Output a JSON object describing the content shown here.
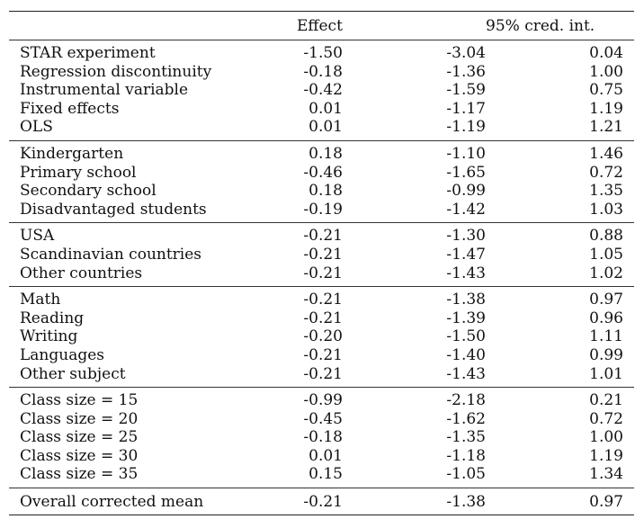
{
  "header": {
    "effect": "Effect",
    "ci": "95% cred. int."
  },
  "groups": [
    {
      "rows": [
        {
          "label": "STAR experiment",
          "effect": "-1.50",
          "lo": "-3.04",
          "hi": "0.04"
        },
        {
          "label": "Regression discontinuity",
          "effect": "-0.18",
          "lo": "-1.36",
          "hi": "1.00"
        },
        {
          "label": "Instrumental variable",
          "effect": "-0.42",
          "lo": "-1.59",
          "hi": "0.75"
        },
        {
          "label": "Fixed effects",
          "effect": "0.01",
          "lo": "-1.17",
          "hi": "1.19"
        },
        {
          "label": "OLS",
          "effect": "0.01",
          "lo": "-1.19",
          "hi": "1.21"
        }
      ]
    },
    {
      "rows": [
        {
          "label": "Kindergarten",
          "effect": "0.18",
          "lo": "-1.10",
          "hi": "1.46"
        },
        {
          "label": "Primary school",
          "effect": "-0.46",
          "lo": "-1.65",
          "hi": "0.72"
        },
        {
          "label": "Secondary school",
          "effect": "0.18",
          "lo": "-0.99",
          "hi": "1.35"
        },
        {
          "label": "Disadvantaged students",
          "effect": "-0.19",
          "lo": "-1.42",
          "hi": "1.03"
        }
      ]
    },
    {
      "rows": [
        {
          "label": "USA",
          "effect": "-0.21",
          "lo": "-1.30",
          "hi": "0.88"
        },
        {
          "label": "Scandinavian countries",
          "effect": "-0.21",
          "lo": "-1.47",
          "hi": "1.05"
        },
        {
          "label": "Other countries",
          "effect": "-0.21",
          "lo": "-1.43",
          "hi": "1.02"
        }
      ]
    },
    {
      "rows": [
        {
          "label": "Math",
          "effect": "-0.21",
          "lo": "-1.38",
          "hi": "0.97"
        },
        {
          "label": "Reading",
          "effect": "-0.21",
          "lo": "-1.39",
          "hi": "0.96"
        },
        {
          "label": "Writing",
          "effect": "-0.20",
          "lo": "-1.50",
          "hi": "1.11"
        },
        {
          "label": "Languages",
          "effect": "-0.21",
          "lo": "-1.40",
          "hi": "0.99"
        },
        {
          "label": "Other subject",
          "effect": "-0.21",
          "lo": "-1.43",
          "hi": "1.01"
        }
      ]
    },
    {
      "rows": [
        {
          "label": "Class size = 15",
          "effect": "-0.99",
          "lo": "-2.18",
          "hi": "0.21"
        },
        {
          "label": "Class size = 20",
          "effect": "-0.45",
          "lo": "-1.62",
          "hi": "0.72"
        },
        {
          "label": "Class size = 25",
          "effect": "-0.18",
          "lo": "-1.35",
          "hi": "1.00"
        },
        {
          "label": "Class size = 30",
          "effect": "0.01",
          "lo": "-1.18",
          "hi": "1.19"
        },
        {
          "label": "Class size = 35",
          "effect": "0.15",
          "lo": "-1.05",
          "hi": "1.34"
        }
      ]
    }
  ],
  "overall": {
    "label": "Overall corrected mean",
    "effect": "-0.21",
    "lo": "-1.38",
    "hi": "0.97"
  }
}
